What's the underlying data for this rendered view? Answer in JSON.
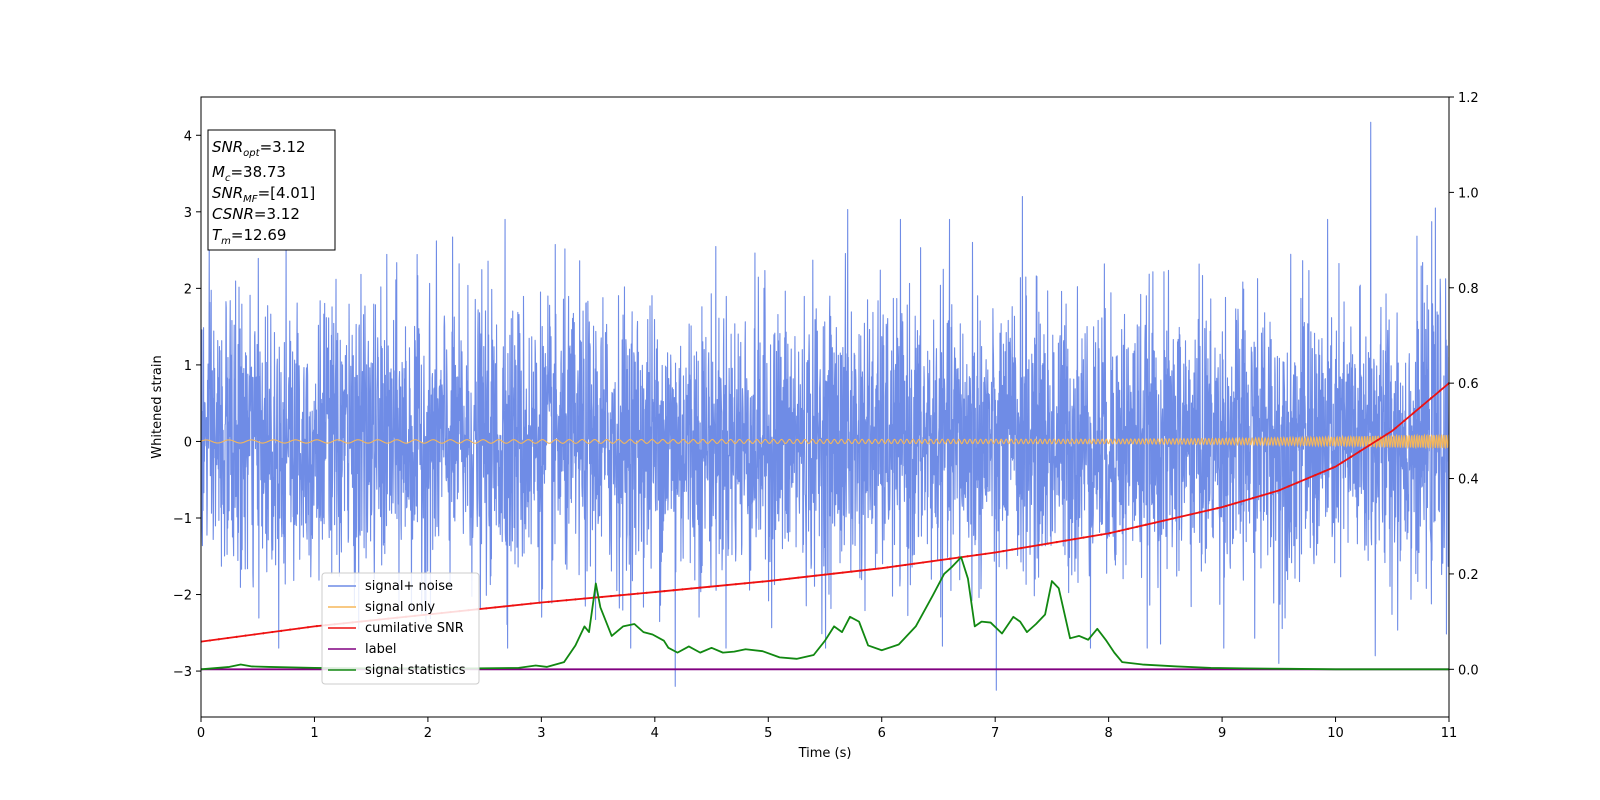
{
  "chart_data": {
    "type": "line",
    "xlabel": "Time (s)",
    "ylabel": "Whitened strain",
    "xlim": [
      0,
      11
    ],
    "ylim": [
      -3.6,
      4.5
    ],
    "y2lim": [
      -0.1,
      1.2
    ],
    "x_ticks": [
      "0",
      "1",
      "2",
      "3",
      "4",
      "5",
      "6",
      "7",
      "8",
      "9",
      "10",
      "11"
    ],
    "y_ticks": [
      "−3",
      "−2",
      "−1",
      "0",
      "1",
      "2",
      "3",
      "4"
    ],
    "y2_ticks": [
      "0.0",
      "0.2",
      "0.4",
      "0.6",
      "0.8",
      "1.0",
      "1.2"
    ],
    "annotation": {
      "snr_opt": {
        "main": "SNR",
        "sub": "opt",
        "value": "=3.12"
      },
      "mc": {
        "main": "M",
        "sub": "c",
        "value": "=38.73"
      },
      "snr_mf": {
        "main": "SNR",
        "sub": "MF",
        "value": "=[4.01]"
      },
      "csnr": {
        "main": "CSNR",
        "value": "=3.12"
      },
      "tm": {
        "main": "T",
        "sub": "m",
        "value": "=12.69"
      }
    },
    "legend": {
      "placement": "lower-left",
      "entries": [
        "signal+ noise",
        "signal only",
        "cumilative SNR",
        "label",
        "signal statistics"
      ]
    },
    "series": [
      {
        "name": "signal+ noise",
        "axis": "left",
        "color": "#6f8ce6",
        "style": "noise",
        "approx_std": 0.9,
        "peaks": [
          [
            0.75,
            2.6
          ],
          [
            2.68,
            2.9
          ],
          [
            5.7,
            3.03
          ],
          [
            6.8,
            2.6
          ],
          [
            7.24,
            3.2
          ],
          [
            10.31,
            4.17
          ],
          [
            10.88,
            3.05
          ]
        ],
        "troughs": [
          [
            4.18,
            -3.2
          ],
          [
            7.01,
            -3.25
          ],
          [
            9.5,
            -2.9
          ],
          [
            10.35,
            -2.8
          ]
        ]
      },
      {
        "name": "signal only",
        "axis": "left",
        "color": "#f5b75a",
        "style": "chirp",
        "x": [
          0,
          8,
          9,
          10,
          10.5,
          11
        ],
        "amplitude": [
          0.02,
          0.03,
          0.04,
          0.06,
          0.08,
          0.09
        ]
      },
      {
        "name": "cumilative SNR",
        "axis": "right",
        "color": "#ee1111",
        "x": [
          0,
          1,
          2,
          3,
          4,
          5,
          6,
          7,
          8,
          9,
          9.5,
          10,
          10.5,
          11
        ],
        "values": [
          0.058,
          0.09,
          0.115,
          0.14,
          0.162,
          0.185,
          0.212,
          0.245,
          0.285,
          0.34,
          0.375,
          0.425,
          0.5,
          0.6
        ]
      },
      {
        "name": "label",
        "axis": "right",
        "color": "#800080",
        "x": [
          0,
          11
        ],
        "values": [
          0.0,
          0.0
        ]
      },
      {
        "name": "signal statistics",
        "axis": "right",
        "color": "#118811",
        "x": [
          0,
          0.25,
          0.35,
          0.45,
          0.6,
          0.8,
          1.0,
          1.2,
          1.5,
          2.0,
          2.4,
          2.8,
          2.95,
          3.05,
          3.2,
          3.3,
          3.38,
          3.42,
          3.48,
          3.52,
          3.62,
          3.72,
          3.82,
          3.9,
          3.98,
          4.08,
          4.12,
          4.2,
          4.3,
          4.4,
          4.5,
          4.6,
          4.7,
          4.8,
          4.95,
          5.1,
          5.25,
          5.4,
          5.5,
          5.58,
          5.65,
          5.72,
          5.8,
          5.88,
          6.0,
          6.15,
          6.3,
          6.45,
          6.55,
          6.62,
          6.7,
          6.76,
          6.82,
          6.88,
          6.96,
          7.06,
          7.16,
          7.22,
          7.28,
          7.36,
          7.44,
          7.5,
          7.56,
          7.66,
          7.74,
          7.82,
          7.9,
          7.98,
          8.05,
          8.12,
          8.3,
          8.6,
          8.9,
          9.2,
          9.6,
          10.0,
          10.5,
          11.0
        ],
        "values": [
          0.0,
          0.005,
          0.01,
          0.006,
          0.005,
          0.004,
          0.003,
          0.0025,
          0.002,
          0.002,
          0.002,
          0.003,
          0.008,
          0.005,
          0.015,
          0.05,
          0.09,
          0.078,
          0.18,
          0.13,
          0.07,
          0.09,
          0.095,
          0.078,
          0.073,
          0.06,
          0.045,
          0.035,
          0.048,
          0.035,
          0.045,
          0.035,
          0.037,
          0.042,
          0.038,
          0.025,
          0.022,
          0.03,
          0.06,
          0.09,
          0.078,
          0.11,
          0.1,
          0.05,
          0.04,
          0.052,
          0.09,
          0.155,
          0.2,
          0.215,
          0.235,
          0.19,
          0.09,
          0.1,
          0.098,
          0.075,
          0.11,
          0.1,
          0.078,
          0.095,
          0.115,
          0.185,
          0.17,
          0.065,
          0.07,
          0.062,
          0.085,
          0.06,
          0.035,
          0.015,
          0.01,
          0.006,
          0.003,
          0.002,
          0.001,
          0.0,
          0.0,
          0.0
        ]
      }
    ]
  }
}
